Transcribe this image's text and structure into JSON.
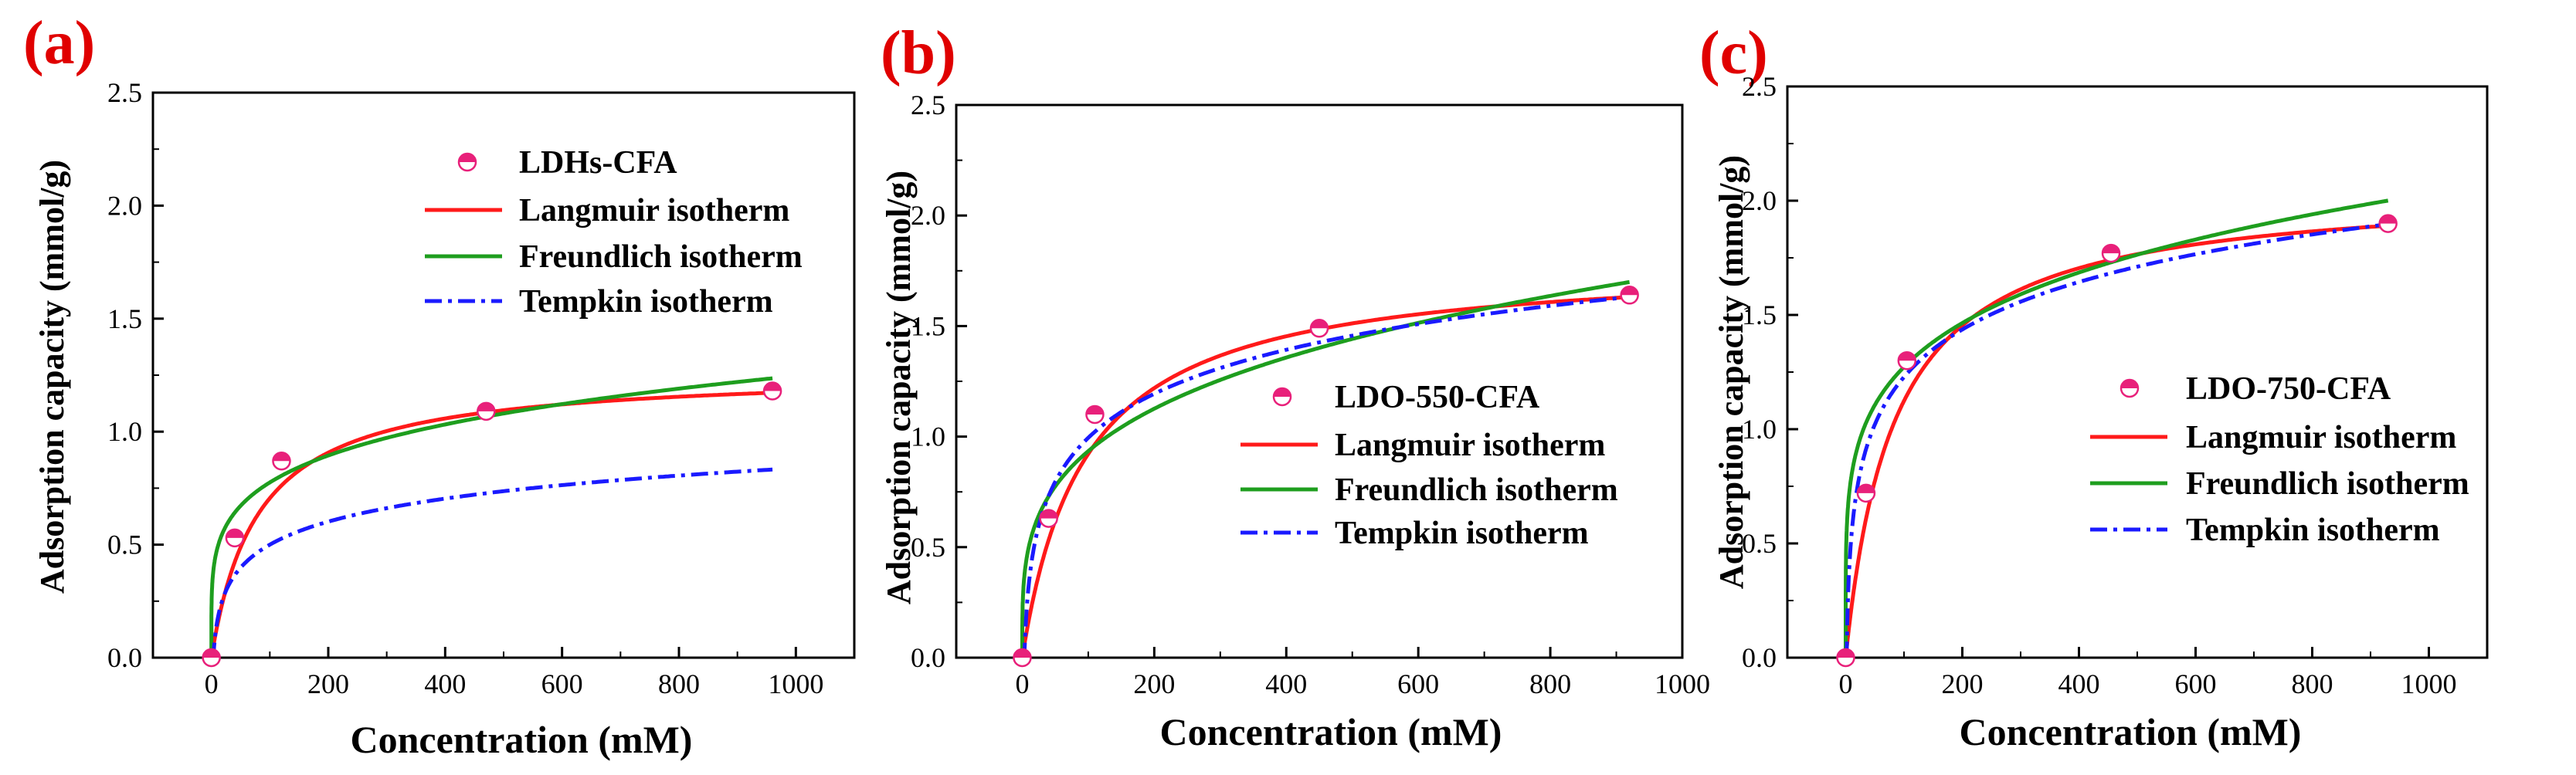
{
  "colors": {
    "langmuir": "#ff1a1a",
    "freundlich": "#1e9e1e",
    "tempkin": "#1a1aff",
    "marker": "#e8207a",
    "panel_label": "#e00000"
  },
  "shared": {
    "xlabel": "Concentration (mM)",
    "ylabel": "Adsorption capacity (mmol/g)",
    "legend_entries": [
      "Langmuir isotherm",
      "Freundlich isotherm",
      "Tempkin isotherm"
    ]
  },
  "chart_data": [
    {
      "type": "scatter",
      "panel_label": "(a)",
      "title": "",
      "sample_name": "LDHs-CFA",
      "xlim": [
        -100,
        1100
      ],
      "ylim": [
        0,
        2.5
      ],
      "xticks": [
        0,
        200,
        400,
        600,
        800,
        1000
      ],
      "yticks": [
        0.0,
        0.5,
        1.0,
        1.5,
        2.0,
        2.5
      ],
      "xlabel": "Concentration (mM)",
      "ylabel": "Adsorption capacity (mmol/g)",
      "legend_position": "upper-center",
      "experimental": {
        "x": [
          0,
          40,
          120,
          470,
          960
        ],
        "y": [
          0,
          0.53,
          0.87,
          1.09,
          1.18
        ]
      },
      "series": [
        {
          "name": "Langmuir isotherm",
          "model": "langmuir",
          "params": {
            "qm": 1.27,
            "K": 0.0125
          }
        },
        {
          "name": "Freundlich isotherm",
          "model": "freundlich",
          "params": {
            "Kf": 0.3,
            "n": 4.85
          }
        },
        {
          "name": "Tempkin isotherm",
          "model": "tempkin",
          "params": {
            "A": 0.3,
            "B": 0.147
          }
        }
      ]
    },
    {
      "type": "scatter",
      "panel_label": "(b)",
      "title": "",
      "sample_name": "LDO-550-CFA",
      "xlim": [
        -100,
        1000
      ],
      "ylim": [
        0,
        2.5
      ],
      "xticks": [
        0,
        200,
        400,
        600,
        800,
        1000
      ],
      "yticks": [
        0.0,
        0.5,
        1.0,
        1.5,
        2.0,
        2.5
      ],
      "xlabel": "Concentration (mM)",
      "ylabel": "Adsorption capacity (mmol/g)",
      "legend_position": "center-right",
      "experimental": {
        "x": [
          0,
          40,
          110,
          450,
          920
        ],
        "y": [
          0,
          0.63,
          1.1,
          1.49,
          1.64
        ]
      },
      "series": [
        {
          "name": "Langmuir isotherm",
          "model": "langmuir",
          "params": {
            "qm": 1.8,
            "K": 0.0105
          }
        },
        {
          "name": "Freundlich isotherm",
          "model": "freundlich",
          "params": {
            "Kf": 0.27,
            "n": 3.71
          }
        },
        {
          "name": "Tempkin isotherm",
          "model": "tempkin",
          "params": {
            "A": 0.32,
            "B": 0.287
          }
        }
      ]
    },
    {
      "type": "scatter",
      "panel_label": "(c)",
      "title": "",
      "sample_name": "LDO-750-CFA",
      "xlim": [
        -100,
        1100
      ],
      "ylim": [
        0,
        2.5
      ],
      "xticks": [
        0,
        200,
        400,
        600,
        800,
        1000
      ],
      "yticks": [
        0.0,
        0.5,
        1.0,
        1.5,
        2.0,
        2.5
      ],
      "xlabel": "Concentration (mM)",
      "ylabel": "Adsorption capacity (mmol/g)",
      "legend_position": "center-right",
      "experimental": {
        "x": [
          0,
          35,
          105,
          455,
          930
        ],
        "y": [
          0,
          0.72,
          1.3,
          1.77,
          1.9
        ]
      },
      "series": [
        {
          "name": "Langmuir isotherm",
          "model": "langmuir",
          "params": {
            "qm": 2.06,
            "K": 0.012
          }
        },
        {
          "name": "Freundlich isotherm",
          "model": "freundlich",
          "params": {
            "Kf": 0.5,
            "n": 4.93
          }
        },
        {
          "name": "Tempkin isotherm",
          "model": "tempkin",
          "params": {
            "A": 0.6,
            "B": 0.3
          }
        }
      ]
    }
  ]
}
